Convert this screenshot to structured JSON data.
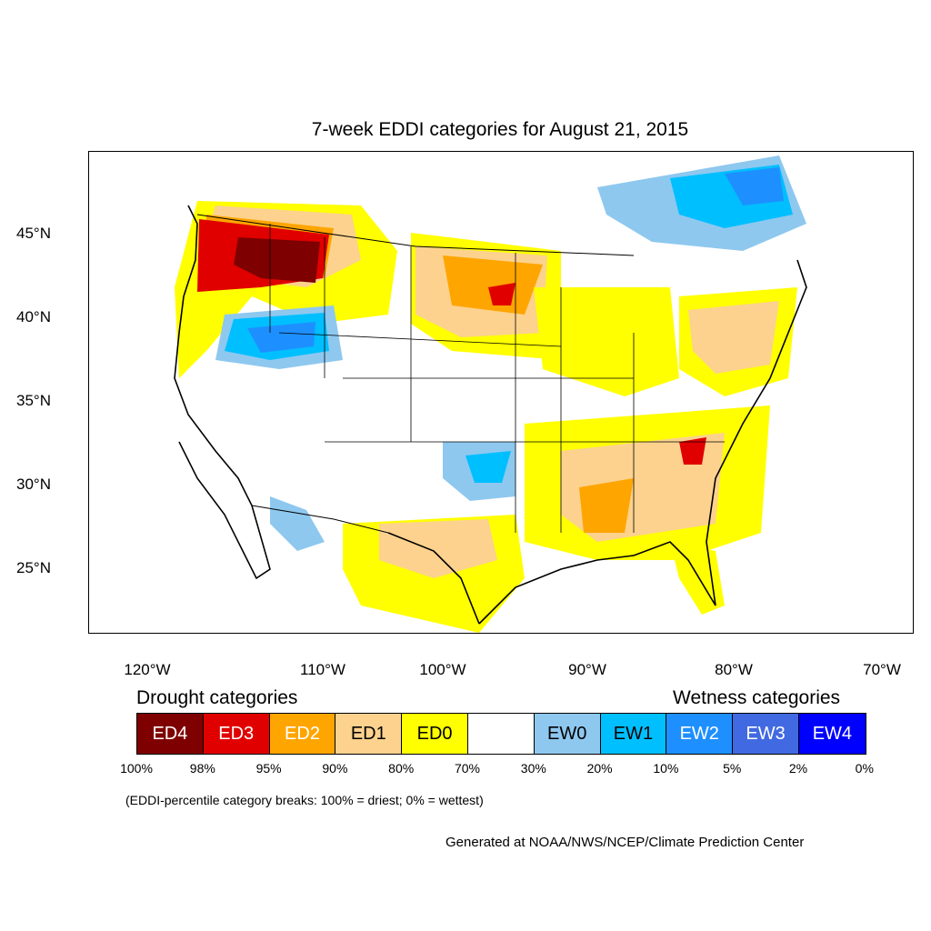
{
  "title": "7-week EDDI categories for August 21, 2015",
  "lat_labels": [
    "45°N",
    "40°N",
    "35°N",
    "30°N",
    "25°N"
  ],
  "lon_labels": [
    "120°W",
    "110°W",
    "100°W",
    "90°W",
    "80°W",
    "70°W"
  ],
  "drought_heading": "Drought categories",
  "wetness_heading": "Wetness categories",
  "legend": [
    {
      "label": "ED4",
      "color": "#7f0000",
      "text_color": "#ffffff"
    },
    {
      "label": "ED3",
      "color": "#e00000",
      "text_color": "#ffffff"
    },
    {
      "label": "ED2",
      "color": "#ffa500",
      "text_color": "#ffffff"
    },
    {
      "label": "ED1",
      "color": "#fcd28e",
      "text_color": "#000000"
    },
    {
      "label": "ED0",
      "color": "#ffff00",
      "text_color": "#000000"
    },
    {
      "label": "",
      "color": "#ffffff",
      "text_color": "#000000"
    },
    {
      "label": "EW0",
      "color": "#8ec8ef",
      "text_color": "#000000"
    },
    {
      "label": "EW1",
      "color": "#00bfff",
      "text_color": "#000000"
    },
    {
      "label": "EW2",
      "color": "#1e8fff",
      "text_color": "#ffffff"
    },
    {
      "label": "EW3",
      "color": "#4169e1",
      "text_color": "#ffffff"
    },
    {
      "label": "EW4",
      "color": "#0000ff",
      "text_color": "#ffffff"
    }
  ],
  "percentile_ticks": [
    "100%",
    "98%",
    "95%",
    "90%",
    "80%",
    "70%",
    "30%",
    "20%",
    "10%",
    "5%",
    "2%",
    "0%"
  ],
  "footnote": "(EDDI-percentile category breaks: 100% = driest; 0% = wettest)",
  "credit": "Generated at NOAA/NWS/NCEP/Climate Prediction Center"
}
